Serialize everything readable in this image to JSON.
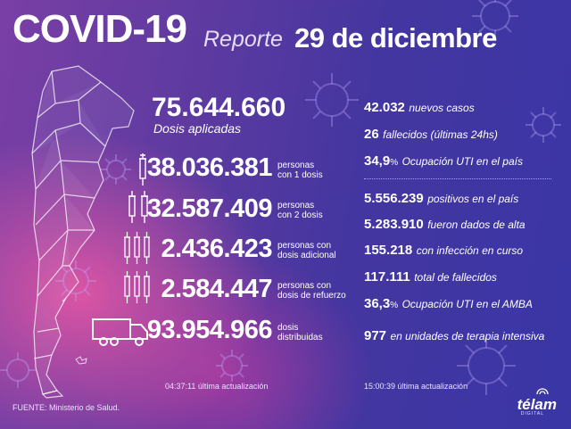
{
  "header": {
    "title": "COVID-19",
    "reporte": "Reporte",
    "fecha": "29 de diciembre"
  },
  "vacunas": {
    "total_dosis": "75.644.660",
    "total_label": "Dosis aplicadas",
    "rows": [
      {
        "value": "38.036.381",
        "line1": "personas",
        "line2": "con 1 dosis"
      },
      {
        "value": "32.587.409",
        "line1": "personas",
        "line2": "con 2 dosis"
      },
      {
        "value": "2.436.423",
        "line1": "personas con",
        "line2": "dosis adicional"
      },
      {
        "value": "2.584.447",
        "line1": "personas con",
        "line2": "dosis de refuerzo"
      },
      {
        "value": "93.954.966",
        "line1": "dosis",
        "line2": "distribuidas"
      }
    ],
    "update": "04:37:11 última actualización"
  },
  "casos": {
    "top": [
      {
        "value": "42.032",
        "text": "nuevos casos"
      },
      {
        "value": "26",
        "text": "fallecidos (últimas 24hs)"
      },
      {
        "value": "34,9",
        "unit": "%",
        "text": "Ocupación UTI en el país"
      }
    ],
    "bottom": [
      {
        "value": "5.556.239",
        "text": "positivos en el país"
      },
      {
        "value": "5.283.910",
        "text": "fueron dados de alta"
      },
      {
        "value": "155.218",
        "text": "con infección en curso"
      },
      {
        "value": "117.111",
        "text": "total de fallecidos"
      },
      {
        "value": "36,3",
        "unit": "%",
        "text": "Ocupación UTI en el AMBA"
      },
      {
        "value": "977",
        "text": "en unidades de terapia intensiva"
      }
    ],
    "update": "15:00:39 última actualización"
  },
  "footer": {
    "fuente": "FUENTE: Ministerio de Salud.",
    "logo": "télam",
    "logo_sub": "DIGITAL"
  }
}
